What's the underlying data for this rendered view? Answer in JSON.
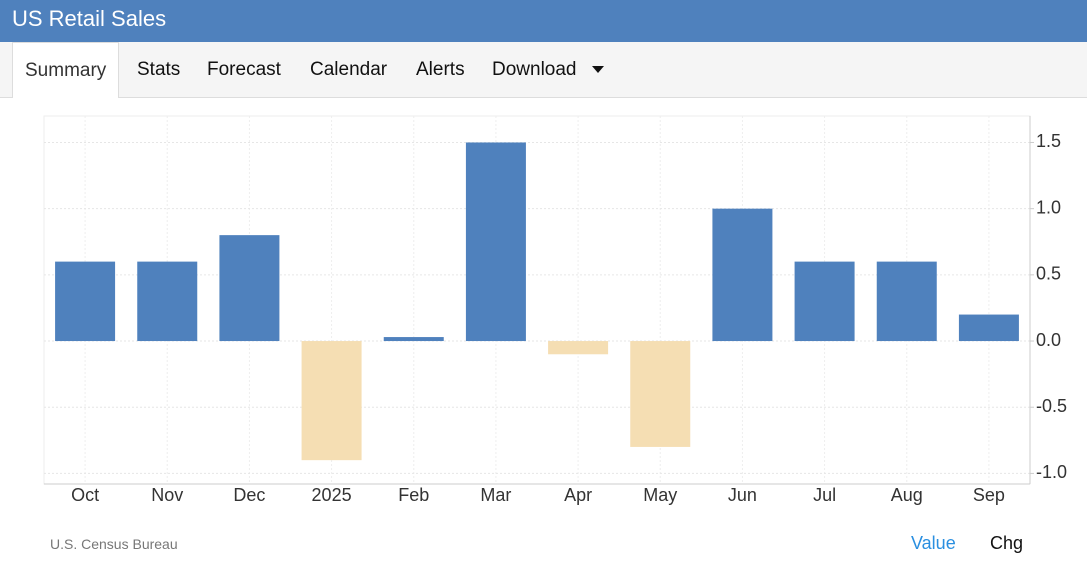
{
  "header": {
    "title": "US Retail Sales"
  },
  "tabs": [
    "Summary",
    "Stats",
    "Forecast",
    "Calendar",
    "Alerts",
    "Download"
  ],
  "chart_data": {
    "type": "bar",
    "categories": [
      "Oct",
      "Nov",
      "Dec",
      "2025",
      "Feb",
      "Mar",
      "Apr",
      "May",
      "Jun",
      "Jul",
      "Aug",
      "Sep"
    ],
    "values": [
      0.6,
      0.6,
      0.8,
      -0.9,
      0.03,
      1.5,
      -0.1,
      -0.8,
      1.0,
      0.6,
      0.6,
      0.2
    ],
    "color": "#4f81bd",
    "negative_color": "#f5deb3",
    "ylim": [
      -1.08,
      1.7
    ],
    "yticks": [
      {
        "value": -1,
        "label": "-1.0"
      },
      -0.5,
      {
        "value": 0,
        "label": "0.0"
      },
      0.5,
      {
        "value": 1,
        "label": "1.0"
      },
      1.5
    ],
    "grid": true
  },
  "footer": {
    "source": "U.S. Census Bureau",
    "toggles": [
      "Value",
      "Chg"
    ]
  }
}
